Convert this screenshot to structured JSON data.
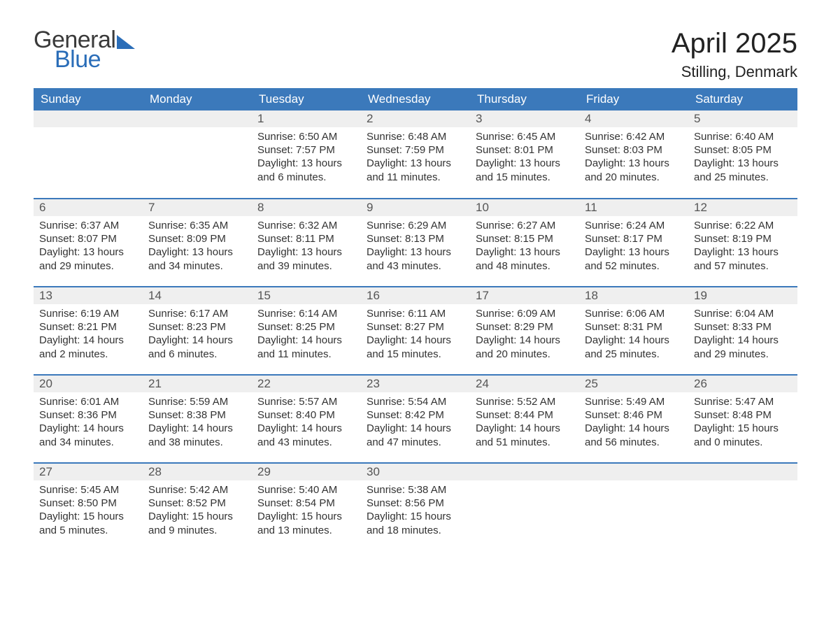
{
  "logo": {
    "word1": "General",
    "word2": "Blue",
    "accent_color": "#2a6db8"
  },
  "title": "April 2025",
  "location": "Stilling, Denmark",
  "colors": {
    "header_bg": "#3b79bb",
    "header_text": "#ffffff",
    "daynum_bg": "#efefef",
    "row_border": "#3b79bb",
    "text": "#333333"
  },
  "fonts": {
    "title_size_pt": 30,
    "location_size_pt": 17,
    "header_size_pt": 13,
    "body_size_pt": 11
  },
  "day_headers": [
    "Sunday",
    "Monday",
    "Tuesday",
    "Wednesday",
    "Thursday",
    "Friday",
    "Saturday"
  ],
  "weeks": [
    [
      null,
      null,
      {
        "n": "1",
        "sunrise": "Sunrise: 6:50 AM",
        "sunset": "Sunset: 7:57 PM",
        "day1": "Daylight: 13 hours",
        "day2": "and 6 minutes."
      },
      {
        "n": "2",
        "sunrise": "Sunrise: 6:48 AM",
        "sunset": "Sunset: 7:59 PM",
        "day1": "Daylight: 13 hours",
        "day2": "and 11 minutes."
      },
      {
        "n": "3",
        "sunrise": "Sunrise: 6:45 AM",
        "sunset": "Sunset: 8:01 PM",
        "day1": "Daylight: 13 hours",
        "day2": "and 15 minutes."
      },
      {
        "n": "4",
        "sunrise": "Sunrise: 6:42 AM",
        "sunset": "Sunset: 8:03 PM",
        "day1": "Daylight: 13 hours",
        "day2": "and 20 minutes."
      },
      {
        "n": "5",
        "sunrise": "Sunrise: 6:40 AM",
        "sunset": "Sunset: 8:05 PM",
        "day1": "Daylight: 13 hours",
        "day2": "and 25 minutes."
      }
    ],
    [
      {
        "n": "6",
        "sunrise": "Sunrise: 6:37 AM",
        "sunset": "Sunset: 8:07 PM",
        "day1": "Daylight: 13 hours",
        "day2": "and 29 minutes."
      },
      {
        "n": "7",
        "sunrise": "Sunrise: 6:35 AM",
        "sunset": "Sunset: 8:09 PM",
        "day1": "Daylight: 13 hours",
        "day2": "and 34 minutes."
      },
      {
        "n": "8",
        "sunrise": "Sunrise: 6:32 AM",
        "sunset": "Sunset: 8:11 PM",
        "day1": "Daylight: 13 hours",
        "day2": "and 39 minutes."
      },
      {
        "n": "9",
        "sunrise": "Sunrise: 6:29 AM",
        "sunset": "Sunset: 8:13 PM",
        "day1": "Daylight: 13 hours",
        "day2": "and 43 minutes."
      },
      {
        "n": "10",
        "sunrise": "Sunrise: 6:27 AM",
        "sunset": "Sunset: 8:15 PM",
        "day1": "Daylight: 13 hours",
        "day2": "and 48 minutes."
      },
      {
        "n": "11",
        "sunrise": "Sunrise: 6:24 AM",
        "sunset": "Sunset: 8:17 PM",
        "day1": "Daylight: 13 hours",
        "day2": "and 52 minutes."
      },
      {
        "n": "12",
        "sunrise": "Sunrise: 6:22 AM",
        "sunset": "Sunset: 8:19 PM",
        "day1": "Daylight: 13 hours",
        "day2": "and 57 minutes."
      }
    ],
    [
      {
        "n": "13",
        "sunrise": "Sunrise: 6:19 AM",
        "sunset": "Sunset: 8:21 PM",
        "day1": "Daylight: 14 hours",
        "day2": "and 2 minutes."
      },
      {
        "n": "14",
        "sunrise": "Sunrise: 6:17 AM",
        "sunset": "Sunset: 8:23 PM",
        "day1": "Daylight: 14 hours",
        "day2": "and 6 minutes."
      },
      {
        "n": "15",
        "sunrise": "Sunrise: 6:14 AM",
        "sunset": "Sunset: 8:25 PM",
        "day1": "Daylight: 14 hours",
        "day2": "and 11 minutes."
      },
      {
        "n": "16",
        "sunrise": "Sunrise: 6:11 AM",
        "sunset": "Sunset: 8:27 PM",
        "day1": "Daylight: 14 hours",
        "day2": "and 15 minutes."
      },
      {
        "n": "17",
        "sunrise": "Sunrise: 6:09 AM",
        "sunset": "Sunset: 8:29 PM",
        "day1": "Daylight: 14 hours",
        "day2": "and 20 minutes."
      },
      {
        "n": "18",
        "sunrise": "Sunrise: 6:06 AM",
        "sunset": "Sunset: 8:31 PM",
        "day1": "Daylight: 14 hours",
        "day2": "and 25 minutes."
      },
      {
        "n": "19",
        "sunrise": "Sunrise: 6:04 AM",
        "sunset": "Sunset: 8:33 PM",
        "day1": "Daylight: 14 hours",
        "day2": "and 29 minutes."
      }
    ],
    [
      {
        "n": "20",
        "sunrise": "Sunrise: 6:01 AM",
        "sunset": "Sunset: 8:36 PM",
        "day1": "Daylight: 14 hours",
        "day2": "and 34 minutes."
      },
      {
        "n": "21",
        "sunrise": "Sunrise: 5:59 AM",
        "sunset": "Sunset: 8:38 PM",
        "day1": "Daylight: 14 hours",
        "day2": "and 38 minutes."
      },
      {
        "n": "22",
        "sunrise": "Sunrise: 5:57 AM",
        "sunset": "Sunset: 8:40 PM",
        "day1": "Daylight: 14 hours",
        "day2": "and 43 minutes."
      },
      {
        "n": "23",
        "sunrise": "Sunrise: 5:54 AM",
        "sunset": "Sunset: 8:42 PM",
        "day1": "Daylight: 14 hours",
        "day2": "and 47 minutes."
      },
      {
        "n": "24",
        "sunrise": "Sunrise: 5:52 AM",
        "sunset": "Sunset: 8:44 PM",
        "day1": "Daylight: 14 hours",
        "day2": "and 51 minutes."
      },
      {
        "n": "25",
        "sunrise": "Sunrise: 5:49 AM",
        "sunset": "Sunset: 8:46 PM",
        "day1": "Daylight: 14 hours",
        "day2": "and 56 minutes."
      },
      {
        "n": "26",
        "sunrise": "Sunrise: 5:47 AM",
        "sunset": "Sunset: 8:48 PM",
        "day1": "Daylight: 15 hours",
        "day2": "and 0 minutes."
      }
    ],
    [
      {
        "n": "27",
        "sunrise": "Sunrise: 5:45 AM",
        "sunset": "Sunset: 8:50 PM",
        "day1": "Daylight: 15 hours",
        "day2": "and 5 minutes."
      },
      {
        "n": "28",
        "sunrise": "Sunrise: 5:42 AM",
        "sunset": "Sunset: 8:52 PM",
        "day1": "Daylight: 15 hours",
        "day2": "and 9 minutes."
      },
      {
        "n": "29",
        "sunrise": "Sunrise: 5:40 AM",
        "sunset": "Sunset: 8:54 PM",
        "day1": "Daylight: 15 hours",
        "day2": "and 13 minutes."
      },
      {
        "n": "30",
        "sunrise": "Sunrise: 5:38 AM",
        "sunset": "Sunset: 8:56 PM",
        "day1": "Daylight: 15 hours",
        "day2": "and 18 minutes."
      },
      null,
      null,
      null
    ]
  ]
}
